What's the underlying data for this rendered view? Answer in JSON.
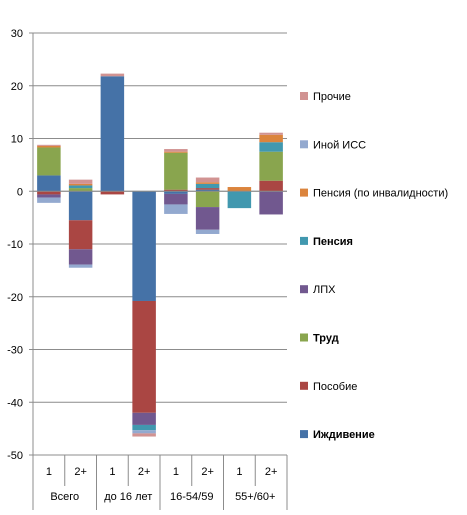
{
  "chart_data": {
    "type": "bar",
    "stacked": true,
    "ylim": [
      -50,
      30
    ],
    "ytick_step": 10,
    "grid": true,
    "legend_position": "right",
    "x_inner_labels": [
      "1",
      "2+",
      "1",
      "2+",
      "1",
      "2+",
      "1",
      "2+"
    ],
    "groups": [
      {
        "label": "Всего"
      },
      {
        "label": "до 16 лет"
      },
      {
        "label": "16-54/59"
      },
      {
        "label": "55+/60+"
      }
    ],
    "series": [
      {
        "name": "Иждивение",
        "color": "#4572a7",
        "bold": true,
        "values": [
          3.0,
          -5.5,
          21.8,
          -20.8,
          -0.5,
          0.3,
          0,
          0
        ]
      },
      {
        "name": "Пособие",
        "color": "#aa4643",
        "bold": false,
        "values": [
          -0.6,
          -5.5,
          -0.6,
          -21.2,
          0.3,
          0.3,
          0,
          2.0
        ]
      },
      {
        "name": "Труд",
        "color": "#89a54e",
        "bold": true,
        "values": [
          5.3,
          0.6,
          0,
          0,
          7.0,
          -3.0,
          0,
          5.5
        ]
      },
      {
        "name": "ЛПХ",
        "color": "#71588f",
        "bold": false,
        "values": [
          -0.6,
          -2.9,
          0,
          -2.3,
          -2.0,
          -4.3,
          0,
          -4.4
        ]
      },
      {
        "name": "Пенсия",
        "color": "#4198af",
        "bold": true,
        "values": [
          0,
          0.5,
          0,
          -1.0,
          0,
          0.8,
          -3.2,
          1.8
        ]
      },
      {
        "name": "Пенсия (по инвалидности)",
        "color": "#db843d",
        "bold": false,
        "values": [
          0.3,
          0.3,
          0,
          0,
          0.2,
          0.3,
          0.8,
          1.4
        ]
      },
      {
        "name": "Иной ИСС",
        "color": "#93a9cf",
        "bold": false,
        "values": [
          -1.0,
          -0.6,
          0,
          -0.6,
          -1.8,
          -0.8,
          0,
          0
        ]
      },
      {
        "name": "Прочие",
        "color": "#d19392",
        "bold": false,
        "values": [
          0.2,
          0.8,
          0.5,
          -0.6,
          0.5,
          0.9,
          0,
          0.4
        ]
      }
    ]
  }
}
